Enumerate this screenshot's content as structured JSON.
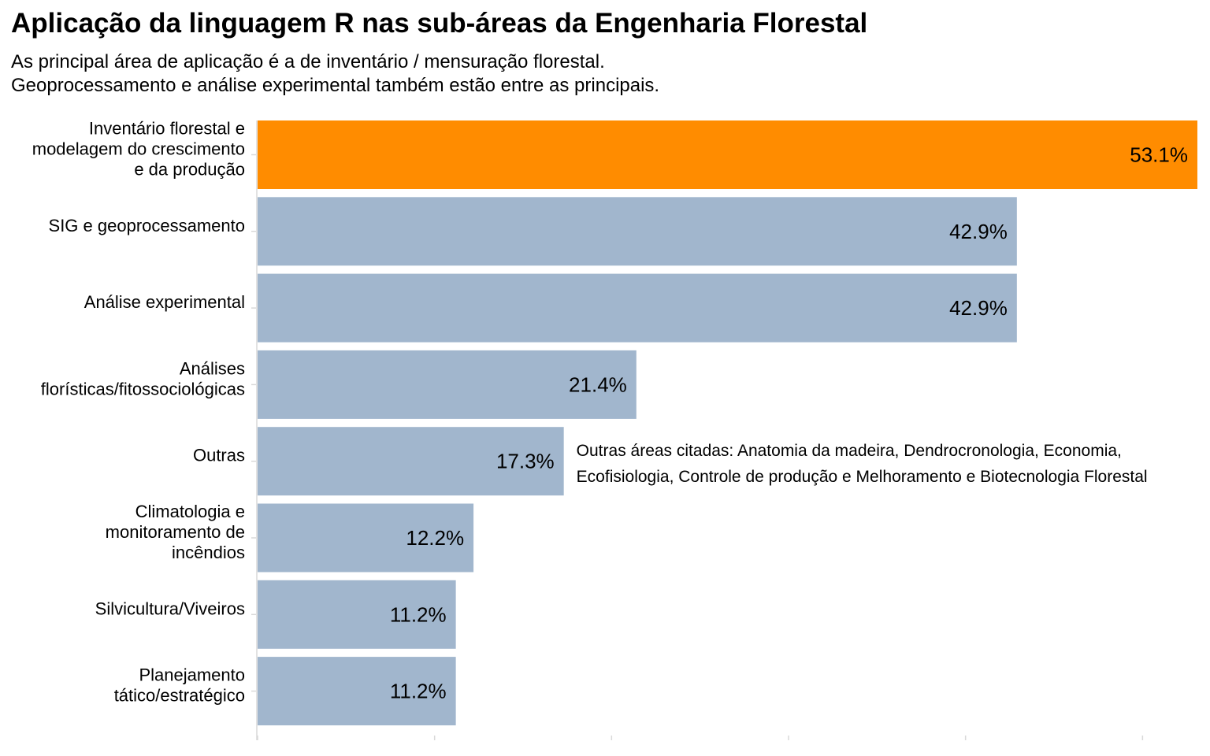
{
  "header": {
    "title": "Aplicação da linguagem R nas sub-áreas da Engenharia Florestal",
    "subtitle_lines": [
      "As principal área de aplicação é a de inventário / mensuração florestal.",
      "Geoprocessamento e análise experimental também estão entre as principais."
    ]
  },
  "colors": {
    "highlight": "#FF8C00",
    "bar": "#A1B6CD",
    "axis": "#D9D9D9"
  },
  "chart_data": {
    "type": "bar",
    "orientation": "horizontal",
    "title": "Aplicação da linguagem R nas sub-áreas da Engenharia Florestal",
    "categories": [
      [
        "Inventário florestal e",
        "modelagem do crescimento",
        "e da produção"
      ],
      [
        "SIG e geoprocessamento"
      ],
      [
        "Análise experimental"
      ],
      [
        "Análises",
        "florísticas/fitossociológicas"
      ],
      [
        "Outras"
      ],
      [
        "Climatologia e",
        "monitoramento de",
        "incêndios"
      ],
      [
        "Silvicultura/Viveiros"
      ],
      [
        "Planejamento",
        "tático/estratégico"
      ]
    ],
    "values": [
      53.1,
      42.9,
      42.9,
      21.4,
      17.3,
      12.2,
      11.2,
      11.2
    ],
    "value_labels": [
      "53.1%",
      "42.9%",
      "42.9%",
      "21.4%",
      "17.3%",
      "12.2%",
      "11.2%",
      "11.2%"
    ],
    "highlight_index": 0,
    "xlim": [
      0,
      53.1
    ],
    "x_ticks": [
      0,
      10,
      20,
      30,
      40,
      50
    ],
    "x_tick_labels_visible": false,
    "grid": false,
    "annotation": {
      "category_index": 4,
      "lines": [
        "Outras áreas citadas: Anatomia da madeira, Dendrocronologia, Economia,",
        "Ecofisiologia, Controle de produção e Melhoramento e Biotecnologia Florestal"
      ]
    }
  }
}
